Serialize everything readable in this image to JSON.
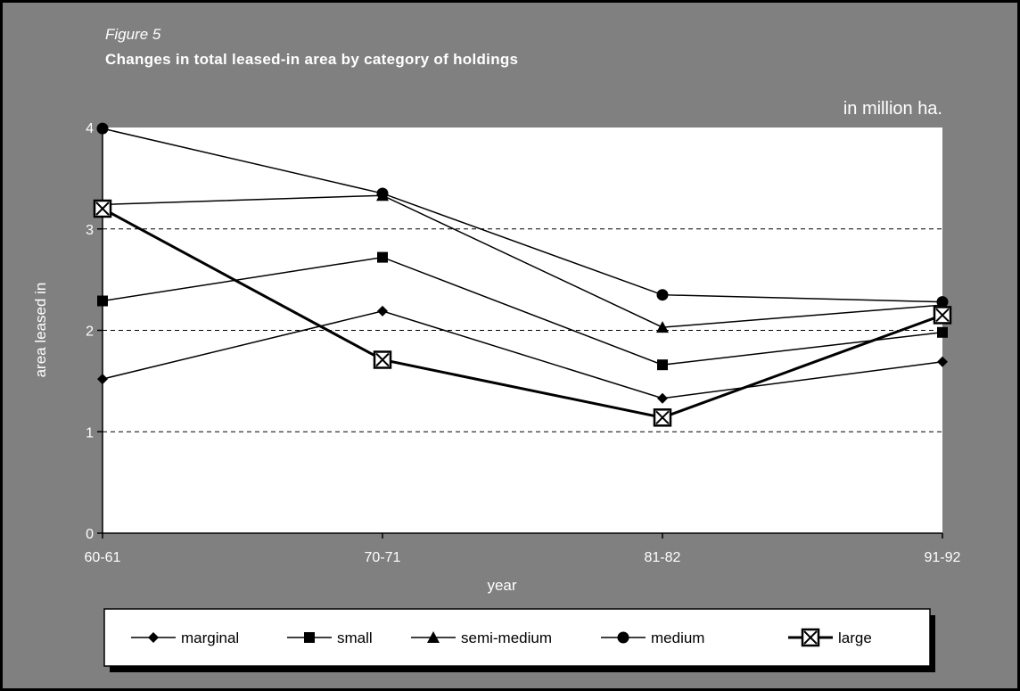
{
  "figure_label": "Figure 5",
  "chart_data": {
    "type": "line",
    "title": "Changes in total leased-in area by category of holdings",
    "unit_note": "in million ha.",
    "xlabel": "year",
    "ylabel": "area leased in",
    "categories": [
      "60-61",
      "70-71",
      "81-82",
      "91-92"
    ],
    "ylim": [
      0,
      4
    ],
    "yticks": [
      "0",
      "1",
      "2",
      "3",
      "4"
    ],
    "grid": "horizontal dashed",
    "legend_position": "bottom",
    "background_color": "#808080",
    "plot_area_color": "#ffffff",
    "series": [
      {
        "name": "marginal",
        "marker": "diamond",
        "values": [
          1.52,
          2.19,
          1.33,
          1.69
        ]
      },
      {
        "name": "small",
        "marker": "square",
        "values": [
          2.29,
          2.72,
          1.66,
          1.98
        ]
      },
      {
        "name": "semi-medium",
        "marker": "triangle",
        "values": [
          3.24,
          3.33,
          2.03,
          2.25
        ]
      },
      {
        "name": "medium",
        "marker": "circle",
        "values": [
          3.99,
          3.35,
          2.35,
          2.28
        ]
      },
      {
        "name": "large",
        "marker": "boxed-x",
        "values": [
          3.2,
          1.71,
          1.14,
          2.15
        ]
      }
    ]
  }
}
